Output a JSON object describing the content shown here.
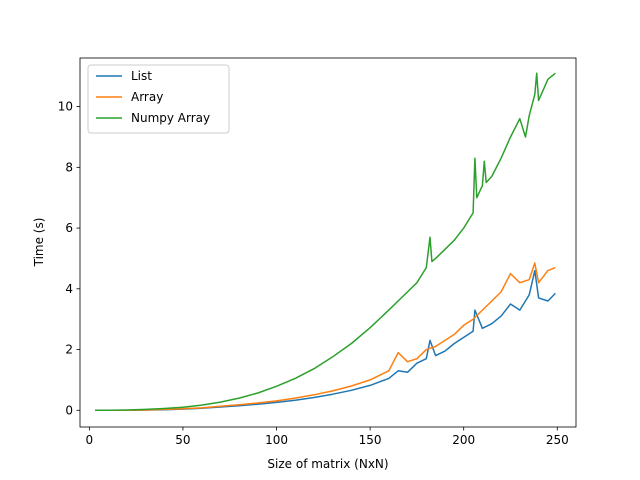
{
  "chart_data": {
    "type": "line",
    "title": "",
    "xlabel": "Size of matrix (NxN)",
    "ylabel": "Time (s)",
    "xlim": [
      -5,
      260
    ],
    "ylim": [
      -0.55,
      11.6
    ],
    "xticks": [
      0,
      50,
      100,
      150,
      200,
      250
    ],
    "yticks": [
      0,
      2,
      4,
      6,
      8,
      10
    ],
    "grid": false,
    "legend": "top-left",
    "series": [
      {
        "name": "List",
        "color": "#1f77b4",
        "x": [
          3,
          10,
          20,
          30,
          40,
          50,
          60,
          70,
          80,
          90,
          100,
          110,
          120,
          130,
          140,
          150,
          160,
          165,
          170,
          175,
          180,
          182,
          185,
          190,
          195,
          200,
          205,
          206,
          210,
          215,
          220,
          225,
          230,
          235,
          238,
          240,
          245,
          249
        ],
        "y": [
          0,
          0,
          0,
          0.01,
          0.02,
          0.04,
          0.07,
          0.11,
          0.15,
          0.2,
          0.26,
          0.33,
          0.42,
          0.53,
          0.66,
          0.82,
          1.05,
          1.3,
          1.25,
          1.55,
          1.7,
          2.3,
          1.8,
          1.95,
          2.2,
          2.4,
          2.6,
          3.3,
          2.7,
          2.85,
          3.1,
          3.5,
          3.3,
          3.8,
          4.6,
          3.7,
          3.6,
          3.85
        ]
      },
      {
        "name": "Array",
        "color": "#ff7f0e",
        "x": [
          3,
          10,
          20,
          30,
          40,
          50,
          60,
          70,
          80,
          90,
          100,
          110,
          120,
          130,
          140,
          150,
          160,
          165,
          170,
          175,
          180,
          185,
          190,
          195,
          200,
          205,
          210,
          215,
          220,
          225,
          230,
          235,
          238,
          240,
          245,
          249
        ],
        "y": [
          0,
          0,
          0,
          0.01,
          0.03,
          0.05,
          0.08,
          0.13,
          0.18,
          0.24,
          0.31,
          0.4,
          0.51,
          0.64,
          0.8,
          1.0,
          1.3,
          1.9,
          1.6,
          1.7,
          2.0,
          2.1,
          2.3,
          2.5,
          2.8,
          3.0,
          3.3,
          3.6,
          3.9,
          4.5,
          4.2,
          4.3,
          4.85,
          4.2,
          4.6,
          4.7
        ]
      },
      {
        "name": "Numpy Array",
        "color": "#2ca02c",
        "x": [
          3,
          10,
          20,
          30,
          40,
          50,
          60,
          70,
          80,
          90,
          100,
          110,
          120,
          130,
          140,
          150,
          160,
          170,
          175,
          180,
          182,
          183,
          185,
          190,
          195,
          200,
          205,
          206,
          207,
          210,
          211,
          212,
          215,
          220,
          225,
          230,
          233,
          235,
          238,
          239,
          240,
          245,
          249
        ],
        "y": [
          0,
          0,
          0.01,
          0.03,
          0.06,
          0.1,
          0.17,
          0.27,
          0.4,
          0.57,
          0.79,
          1.05,
          1.37,
          1.76,
          2.2,
          2.72,
          3.3,
          3.9,
          4.2,
          4.7,
          5.7,
          4.9,
          5.0,
          5.3,
          5.6,
          6.0,
          6.5,
          8.3,
          7.0,
          7.4,
          8.2,
          7.5,
          7.7,
          8.3,
          9.0,
          9.6,
          9.0,
          9.7,
          10.4,
          11.1,
          10.2,
          10.9,
          11.1
        ]
      }
    ]
  }
}
